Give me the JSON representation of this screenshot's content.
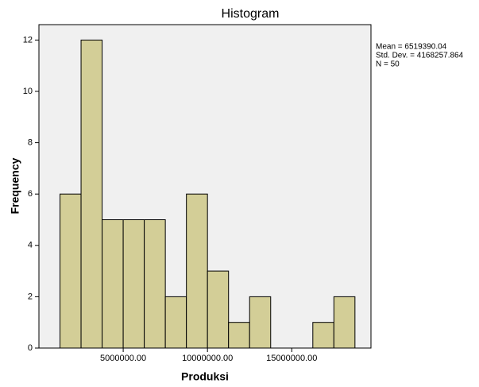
{
  "chart_data": {
    "type": "histogram",
    "title": "Histogram",
    "xlabel": "Produksi",
    "ylabel": "Frequency",
    "bins": [
      1250000,
      2500000,
      3750000,
      5000000,
      6250000,
      7500000,
      8750000,
      10000000,
      11250000,
      12500000,
      13750000,
      15000000,
      16250000,
      17500000,
      18750000
    ],
    "values": [
      6,
      12,
      5,
      5,
      5,
      2,
      6,
      3,
      1,
      2,
      0,
      0,
      1,
      2
    ],
    "color": "#d3ce97",
    "background": "#f0f0f0",
    "xlim": [
      0,
      19700000
    ],
    "xticks": [
      {
        "value": 5000000,
        "label": "5000000.00"
      },
      {
        "value": 10000000,
        "label": "10000000.00"
      },
      {
        "value": 15000000,
        "label": "15000000.00"
      }
    ],
    "ylim": [
      0,
      12.6
    ],
    "yticks": [
      0,
      2,
      4,
      6,
      8,
      10,
      12
    ],
    "annotations": [
      "Mean = 6519390.04",
      "Std. Dev. = 4168257.864",
      "N = 50"
    ]
  }
}
